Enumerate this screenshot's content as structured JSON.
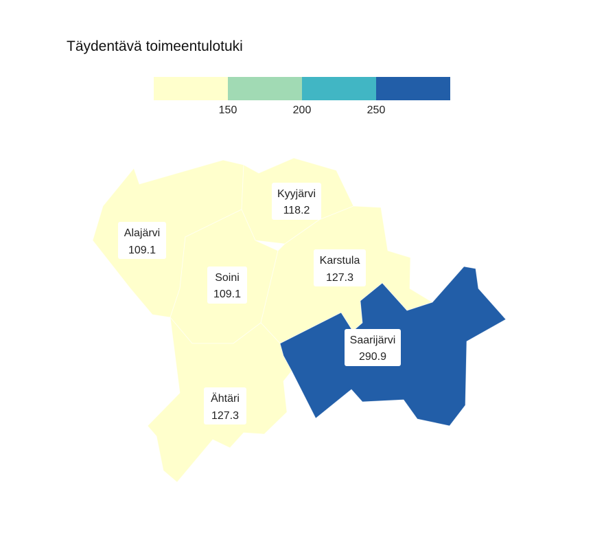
{
  "title": "Täydentävä toimeentulotuki",
  "legend": {
    "colors": [
      "#ffffcc",
      "#a1dab4",
      "#41b6c4",
      "#225ea8"
    ],
    "ticks": [
      "150",
      "200",
      "250"
    ]
  },
  "regions": [
    {
      "name": "Alajärvi",
      "value": "109.1",
      "color": "#ffffcc"
    },
    {
      "name": "Kyyjärvi",
      "value": "118.2",
      "color": "#ffffcc"
    },
    {
      "name": "Soini",
      "value": "109.1",
      "color": "#ffffcc"
    },
    {
      "name": "Karstula",
      "value": "127.3",
      "color": "#ffffcc"
    },
    {
      "name": "Saarijärvi",
      "value": "290.9",
      "color": "#225ea8"
    },
    {
      "name": "Ähtäri",
      "value": "127.3",
      "color": "#ffffcc"
    }
  ]
}
